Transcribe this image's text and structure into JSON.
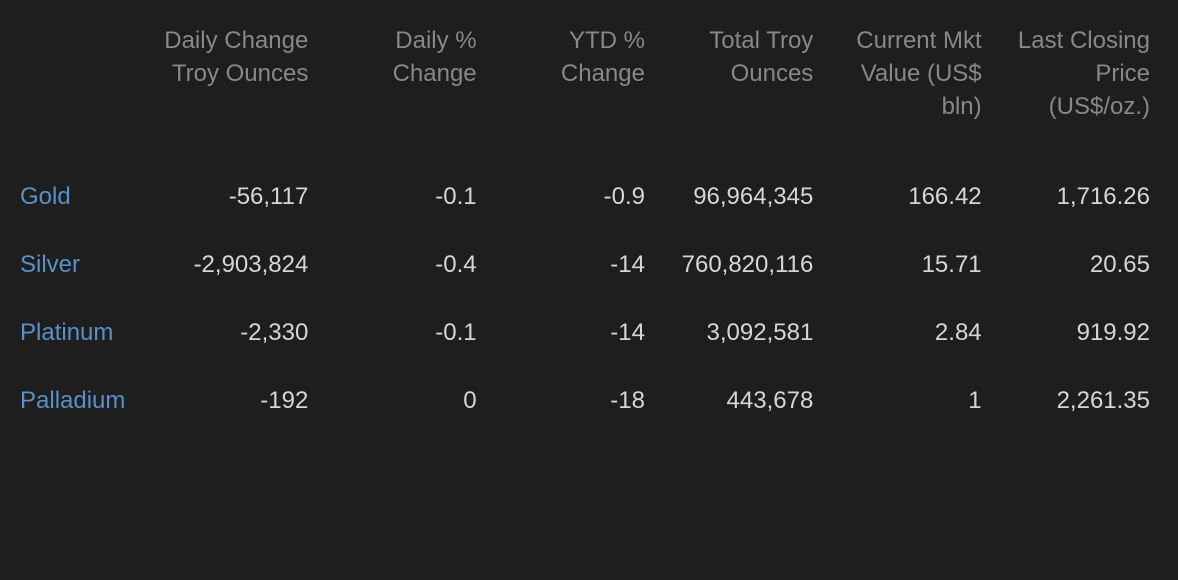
{
  "colors": {
    "background": "#1e1e1e",
    "header_text": "#888888",
    "data_text": "#d6d6d6",
    "link_text": "#5a8fc7"
  },
  "typography": {
    "base_fontsize": 24,
    "header_fontweight": 400,
    "line_height": 1.38
  },
  "table": {
    "columns": [
      "",
      "Daily Change Troy Ounces",
      "Daily % Change",
      "YTD % Change",
      "Total Troy Ounces",
      "Current Mkt Value (US$ bln)",
      "Last Closing Price (US$/oz.)"
    ],
    "rows": [
      {
        "metal": "Gold",
        "daily_change_troy": "-56,117",
        "daily_pct_change": "-0.1",
        "ytd_pct_change": "-0.9",
        "total_troy": "96,964,345",
        "current_mkt_value": "166.42",
        "last_closing_price": "1,716.26"
      },
      {
        "metal": "Silver",
        "daily_change_troy": "-2,903,824",
        "daily_pct_change": "-0.4",
        "ytd_pct_change": "-14",
        "total_troy": "760,820,116",
        "current_mkt_value": "15.71",
        "last_closing_price": "20.65"
      },
      {
        "metal": "Platinum",
        "daily_change_troy": "-2,330",
        "daily_pct_change": "-0.1",
        "ytd_pct_change": "-14",
        "total_troy": "3,092,581",
        "current_mkt_value": "2.84",
        "last_closing_price": "919.92"
      },
      {
        "metal": "Palladium",
        "daily_change_troy": "-192",
        "daily_pct_change": "0",
        "ytd_pct_change": "-18",
        "total_troy": "443,678",
        "current_mkt_value": "1",
        "last_closing_price": "2,261.35"
      }
    ]
  }
}
